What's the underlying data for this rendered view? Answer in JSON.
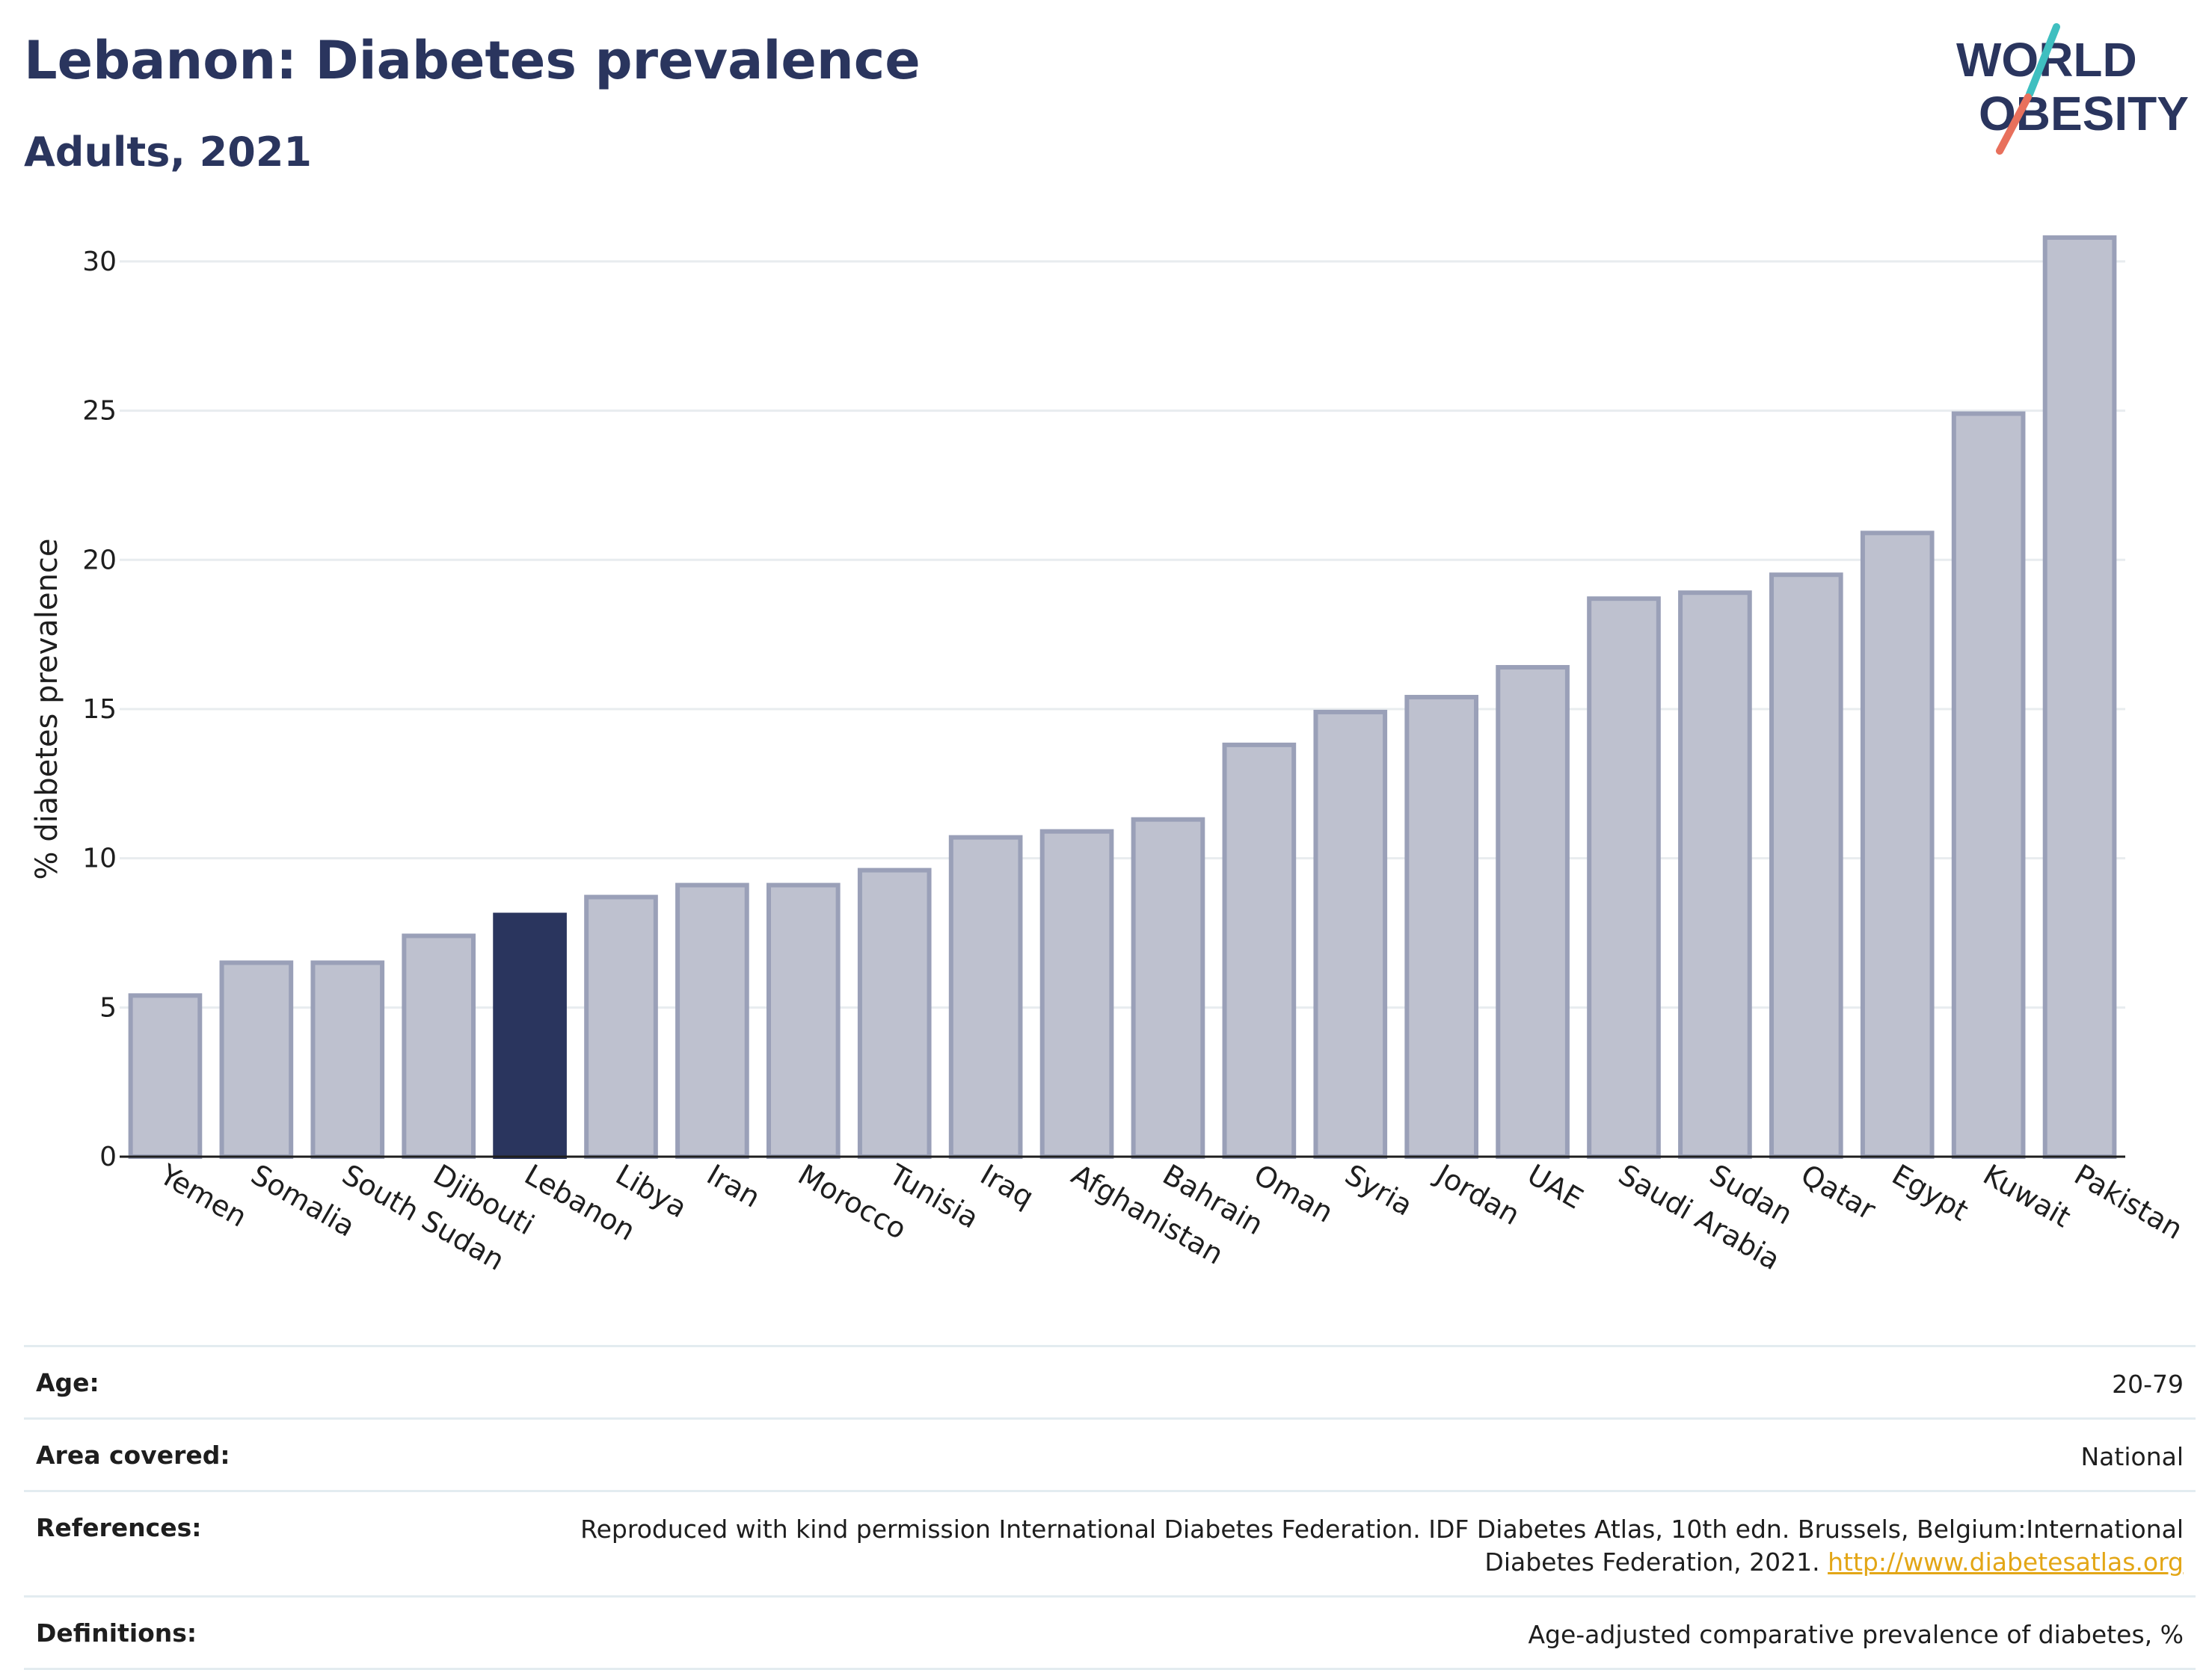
{
  "header": {
    "title": "Lebanon: Diabetes prevalence",
    "subtitle": "Adults, 2021",
    "logo_line1": "WORLD",
    "logo_line2": "OBESITY"
  },
  "colors": {
    "highlight": "#2a355e",
    "bar_fill": "#bec1cf",
    "bar_stroke": "#9aa0b8",
    "grid": "#e8ecef",
    "logo_text": "#2a355e",
    "logo_slash_teal": "#3fbfc0",
    "logo_slash_red": "#e8705c",
    "link": "#e3a616"
  },
  "chart_data": {
    "type": "bar",
    "title": "Lebanon: Diabetes prevalence",
    "subtitle": "Adults, 2021",
    "ylabel": "% diabetes prevalence",
    "xlabel": "",
    "ylim": [
      0,
      32
    ],
    "yticks": [
      0,
      5,
      10,
      15,
      20,
      25,
      30
    ],
    "grid": true,
    "highlight": "Lebanon",
    "categories": [
      "Yemen",
      "Somalia",
      "South Sudan",
      "Djibouti",
      "Lebanon",
      "Libya",
      "Iran",
      "Morocco",
      "Tunisia",
      "Iraq",
      "Afghanistan",
      "Bahrain",
      "Oman",
      "Syria",
      "Jordan",
      "UAE",
      "Saudi Arabia",
      "Sudan",
      "Qatar",
      "Egypt",
      "Kuwait",
      "Pakistan"
    ],
    "values": [
      5.4,
      6.5,
      6.5,
      7.4,
      8.1,
      8.7,
      9.1,
      9.1,
      9.6,
      10.7,
      10.9,
      11.3,
      13.8,
      14.9,
      15.4,
      16.4,
      18.7,
      18.9,
      19.5,
      20.9,
      24.9,
      30.8
    ]
  },
  "meta": {
    "age_label": "Age:",
    "age_value": "20-79",
    "area_label": "Area covered:",
    "area_value": "National",
    "ref_label": "References:",
    "ref_line1": "Reproduced with kind permission International Diabetes Federation.  IDF Diabetes Atlas, 10th edn. Brussels, Belgium:International",
    "ref_line2": "Diabetes Federation, 2021.",
    "ref_link": "http://www.diabetesatlas.org",
    "def_label": "Definitions:",
    "def_value": "Age-adjusted comparative prevalence of diabetes, %"
  }
}
